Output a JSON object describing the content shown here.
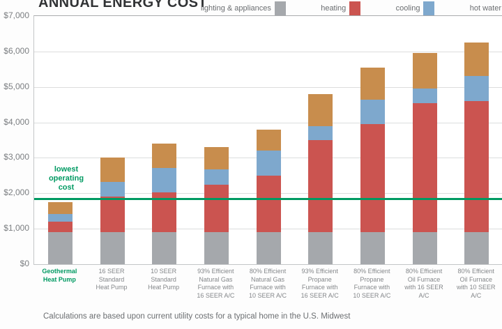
{
  "title": "ANNUAL ENERGY COST",
  "caption": "Calculations are based upon current utility costs for a typical home in the U.S. Midwest",
  "annotation": {
    "text": "lowest\noperating\ncost",
    "line_value": 1850,
    "color": "#009a62"
  },
  "legend": [
    {
      "label": "lighting & appliances",
      "color": "#a5a8ac"
    },
    {
      "label": "heating",
      "color": "#cb5450"
    },
    {
      "label": "cooling",
      "color": "#7ea8cd"
    },
    {
      "label": "hot water",
      "color": "#c88d4d"
    }
  ],
  "chart_data": {
    "type": "bar",
    "stacked": true,
    "title": "ANNUAL ENERGY COST",
    "xlabel": "",
    "ylabel": "",
    "ylim": [
      0,
      7000
    ],
    "ytick_step": 1000,
    "ytick_labels": [
      "$0",
      "$1,000",
      "$2,000",
      "$3,000",
      "$4,000",
      "$5,000",
      "$6,000",
      "$7,000"
    ],
    "grid": true,
    "legend_position": "top",
    "reference_line": {
      "label": "lowest operating cost",
      "value": 1850
    },
    "categories": [
      "Geothermal\nHeat Pump",
      "16 SEER\nStandard\nHeat Pump",
      "10 SEER\nStandard\nHeat Pump",
      "93% Efficient\nNatural Gas\nFurnace with\n16 SEER A/C",
      "80% Efficient\nNatural Gas\nFurnace with\n10 SEER A/C",
      "93% Efficient\nPropane\nFurnace with\n16 SEER A/C",
      "80% Efficient\nPropane\nFurnace with\n10 SEER A/C",
      "80% Efficient\nOil Furnace\nwith 16 SEER\nA/C",
      "80% Efficient\nOil Furnace\nwith 10 SEER\nA/C"
    ],
    "highlight_category_index": 0,
    "series": [
      {
        "name": "lighting & appliances",
        "color": "#a5a8ac",
        "values": [
          900,
          900,
          900,
          900,
          900,
          900,
          900,
          900,
          900
        ]
      },
      {
        "name": "heating",
        "color": "#cb5450",
        "values": [
          300,
          1000,
          1120,
          1350,
          1600,
          2600,
          3050,
          3650,
          3700
        ]
      },
      {
        "name": "cooling",
        "color": "#7ea8cd",
        "values": [
          220,
          430,
          690,
          420,
          700,
          400,
          700,
          400,
          700
        ]
      },
      {
        "name": "hot water",
        "color": "#c88d4d",
        "values": [
          340,
          670,
          690,
          630,
          600,
          900,
          900,
          1000,
          950
        ]
      }
    ],
    "totals": [
      1760,
      3000,
      3400,
      3300,
      3800,
      4800,
      5550,
      5950,
      6250
    ]
  }
}
